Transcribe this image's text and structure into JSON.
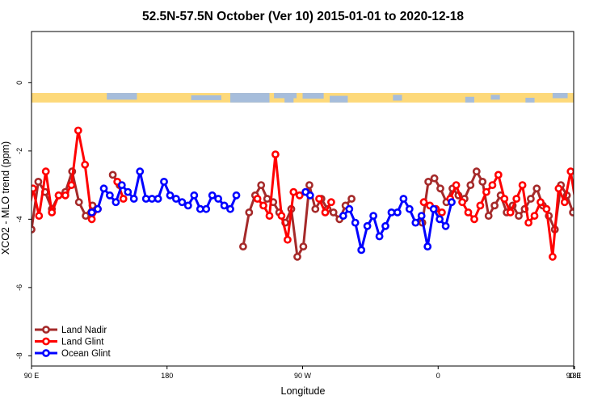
{
  "chart_data": {
    "type": "line",
    "title": "52.5N-57.5N October (Ver 10)   2015-01-01 to 2020-12-18",
    "xlabel": "Longitude",
    "ylabel": "XCO2 - MLO trend (ppm)",
    "xlim": [
      90,
      450
    ],
    "ylim": [
      -8.3,
      1.5
    ],
    "x_ticks": [
      {
        "value": 90,
        "label": "90 E"
      },
      {
        "value": 180,
        "label": "180"
      },
      {
        "value": 270,
        "label": "90 W"
      },
      {
        "value": 360,
        "label": "0"
      },
      {
        "value": 450,
        "label": "90 E"
      },
      {
        "value": 540,
        "label": "180"
      }
    ],
    "y_ticks": [
      {
        "value": 0,
        "label": "0"
      },
      {
        "value": -2,
        "label": "-2"
      },
      {
        "value": -4,
        "label": "-4"
      },
      {
        "value": -6,
        "label": "-6"
      },
      {
        "value": -8,
        "label": "-8"
      }
    ],
    "legend_position": "bottom-left",
    "map_band": {
      "ocean_color": "#a6bddb",
      "land_color": "#fdd97a",
      "y_top": -0.3,
      "y_bottom": -0.58
    },
    "series": [
      {
        "name": "Land Nadir",
        "color": "#a52a2a",
        "segments": [
          {
            "x": [
              90,
              94.5,
              99,
              103.5,
              108,
              112.5,
              117,
              121.5,
              126,
              130.5
            ],
            "y": [
              -4.3,
              -2.9,
              -3.2,
              -3.7,
              -3.3,
              -3.2,
              -2.6,
              -3.5,
              -3.9,
              -3.6
            ]
          },
          {
            "x": [
              144,
              148.5
            ],
            "y": [
              -2.7,
              -3.0
            ]
          },
          {
            "x": [
              230.5,
              234.5,
              238.5,
              242.5,
              246.5,
              250.5,
              254.5,
              258.5,
              262.5,
              266.5,
              270.5,
              274.5,
              278.5,
              282.5,
              286.5,
              290.5,
              294.5,
              298.5,
              302.5
            ],
            "y": [
              -4.8,
              -3.8,
              -3.3,
              -3.0,
              -3.4,
              -3.5,
              -3.8,
              -4.1,
              -3.7,
              -5.1,
              -4.8,
              -3.0,
              -3.7,
              -3.4,
              -3.7,
              -3.8,
              -4.0,
              -3.6,
              -3.4
            ]
          },
          {
            "x": [
              349.5,
              353.5,
              357.5,
              361.5,
              365.5,
              369.5,
              373.5,
              377.5,
              381.5,
              385.5,
              389.5,
              393.5,
              397.5,
              401.5,
              405.5,
              409.5,
              413.5,
              417.5,
              421.5,
              425.5,
              429.5,
              433.5,
              437.5,
              441.5,
              445.5,
              449.5,
              453.5,
              457.5,
              461.5,
              465.5,
              469.5,
              473.5,
              477.5,
              481.5,
              485.5,
              489.5,
              493.5
            ],
            "y": [
              -4.1,
              -2.9,
              -2.8,
              -3.1,
              -3.5,
              -3.1,
              -3.3,
              -3.4,
              -3.0,
              -2.6,
              -2.9,
              -3.9,
              -3.6,
              -3.3,
              -3.8,
              -3.6,
              -3.9,
              -3.7,
              -3.4,
              -3.1,
              -3.6,
              -3.9,
              -4.3,
              -3.0,
              -3.3,
              -3.8,
              -3.3,
              -3.3,
              -3.1,
              -2.6,
              -3.5,
              -3.9,
              -3.6,
              -3.9,
              -3.2,
              -2.7,
              -2.9
            ]
          }
        ]
      },
      {
        "name": "Land Glint",
        "color": "#ff0000",
        "segments": [
          {
            "x": [
              87,
              91,
              95,
              99.5,
              103.5,
              108,
              112.5,
              116.5,
              121,
              125.5,
              130,
              134
            ],
            "y": [
              -4.1,
              -3.1,
              -3.9,
              -2.6,
              -3.8,
              -3.3,
              -3.3,
              -3.0,
              -1.4,
              -2.4,
              -4.0,
              -3.7
            ]
          },
          {
            "x": [
              147,
              151
            ],
            "y": [
              -2.9,
              -3.4
            ]
          },
          {
            "x": [
              240,
              244,
              248,
              252,
              256,
              260,
              264,
              268,
              272
            ],
            "y": [
              -3.4,
              -3.6,
              -3.9,
              -2.1,
              -3.9,
              -4.6,
              -3.2,
              -3.3,
              -3.2
            ]
          },
          {
            "x": [
              281,
              285,
              289
            ],
            "y": [
              -3.4,
              -3.8,
              -3.5
            ]
          },
          {
            "x": [
              350.5,
              354.5,
              358.5,
              362.5
            ],
            "y": [
              -3.5,
              -3.6,
              -3.7,
              -3.8
            ]
          },
          {
            "x": [
              368,
              372,
              376,
              380,
              384,
              388,
              392,
              396,
              400,
              404,
              408,
              412,
              416,
              420,
              424,
              428,
              432,
              436,
              440,
              444,
              448,
              452,
              456,
              460,
              464,
              468,
              472,
              476,
              480
            ],
            "y": [
              -3.4,
              -3.0,
              -3.5,
              -3.8,
              -4.0,
              -3.6,
              -3.2,
              -3.0,
              -2.7,
              -3.4,
              -3.8,
              -3.4,
              -3.0,
              -4.1,
              -3.9,
              -3.5,
              -3.7,
              -5.1,
              -3.1,
              -3.5,
              -2.6,
              -3.7,
              -3.3,
              -3.3,
              -3.0,
              -1.4,
              -2.4,
              -4.0,
              -3.7
            ]
          },
          {
            "x": [
              494
            ],
            "y": [
              -3.1
            ]
          }
        ]
      },
      {
        "name": "Ocean Glint",
        "color": "#0000ff",
        "segments": [
          {
            "x": [
              130,
              134,
              138,
              142,
              146,
              150,
              154,
              158,
              162,
              166,
              170,
              174,
              178,
              182,
              186,
              190,
              194,
              198,
              202,
              206,
              210,
              214,
              218,
              222,
              226
            ],
            "y": [
              -3.8,
              -3.7,
              -3.1,
              -3.3,
              -3.5,
              -3.0,
              -3.2,
              -3.4,
              -2.6,
              -3.4,
              -3.4,
              -3.4,
              -2.9,
              -3.3,
              -3.4,
              -3.5,
              -3.6,
              -3.3,
              -3.7,
              -3.7,
              -3.3,
              -3.4,
              -3.6,
              -3.7,
              -3.3
            ]
          },
          {
            "x": [
              272,
              275
            ],
            "y": [
              -3.2,
              -3.3
            ]
          },
          {
            "x": [
              297,
              301,
              305,
              309,
              313,
              317,
              321,
              325,
              329,
              333,
              337,
              341,
              345,
              349,
              353,
              357,
              361,
              365,
              369
            ],
            "y": [
              -3.9,
              -3.7,
              -4.1,
              -4.9,
              -4.2,
              -3.9,
              -4.5,
              -4.2,
              -3.8,
              -3.8,
              -3.4,
              -3.7,
              -4.1,
              -3.9,
              -4.8,
              -3.7,
              -4.0,
              -4.2,
              -3.5
            ]
          },
          {
            "x": [
              468,
              472,
              476,
              480,
              484,
              488,
              492,
              496,
              500,
              504,
              508
            ],
            "y": [
              -3.8,
              -3.7,
              -3.2,
              -3.6,
              -3.3,
              -3.5,
              -3.3,
              -3.3,
              -3.4,
              -2.6,
              -3.4
            ]
          }
        ]
      }
    ]
  }
}
